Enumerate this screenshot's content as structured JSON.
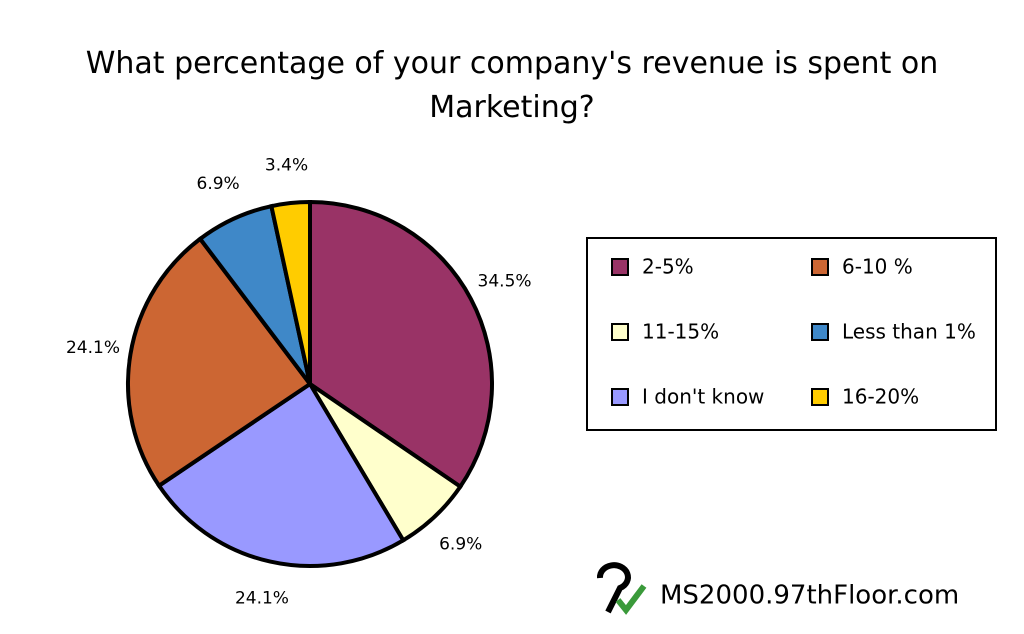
{
  "chart_data": {
    "type": "pie",
    "title": "What percentage of your company's revenue is spent on Marketing?",
    "categories": [
      "2-5%",
      "11-15%",
      "I don't know",
      "6-10 %",
      "Less than 1%",
      "16-20%"
    ],
    "values": [
      34.5,
      6.9,
      24.1,
      24.1,
      6.9,
      3.4
    ],
    "value_labels": [
      "34.5%",
      "6.9%",
      "24.1%",
      "24.1%",
      "6.9%",
      "3.4%"
    ],
    "colors": [
      "#993366",
      "#ffffcc",
      "#9999ff",
      "#cc6633",
      "#3f88c8",
      "#ffcc00"
    ],
    "legend": "right"
  },
  "watermark": "MS2000.97thFloor.com"
}
